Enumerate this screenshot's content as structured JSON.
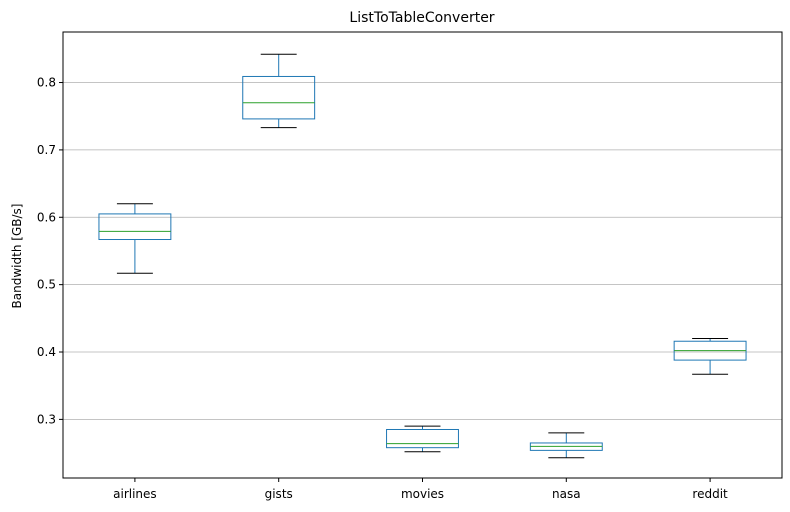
{
  "chart_data": {
    "type": "box",
    "title": "ListToTableConverter",
    "xlabel": "",
    "ylabel": "Bandwidth [GB/s]",
    "ylim": [
      0.213,
      0.875
    ],
    "yticks": [
      0.3,
      0.4,
      0.5,
      0.6,
      0.7,
      0.8
    ],
    "grid": "y",
    "categories": [
      "airlines",
      "gists",
      "movies",
      "nasa",
      "reddit"
    ],
    "boxes": [
      {
        "category": "airlines",
        "whisker_low": 0.517,
        "q1": 0.567,
        "median": 0.579,
        "q3": 0.605,
        "whisker_high": 0.62
      },
      {
        "category": "gists",
        "whisker_low": 0.733,
        "q1": 0.746,
        "median": 0.77,
        "q3": 0.809,
        "whisker_high": 0.842
      },
      {
        "category": "movies",
        "whisker_low": 0.252,
        "q1": 0.258,
        "median": 0.264,
        "q3": 0.285,
        "whisker_high": 0.29
      },
      {
        "category": "nasa",
        "whisker_low": 0.243,
        "q1": 0.254,
        "median": 0.26,
        "q3": 0.265,
        "whisker_high": 0.28
      },
      {
        "category": "reddit",
        "whisker_low": 0.367,
        "q1": 0.388,
        "median": 0.402,
        "q3": 0.416,
        "whisker_high": 0.42
      }
    ],
    "colors": {
      "box": "#1f77b4",
      "median": "#2ca02c",
      "whisker_cap": "#000000",
      "grid": "#b0b0b0",
      "frame": "#000000"
    }
  }
}
